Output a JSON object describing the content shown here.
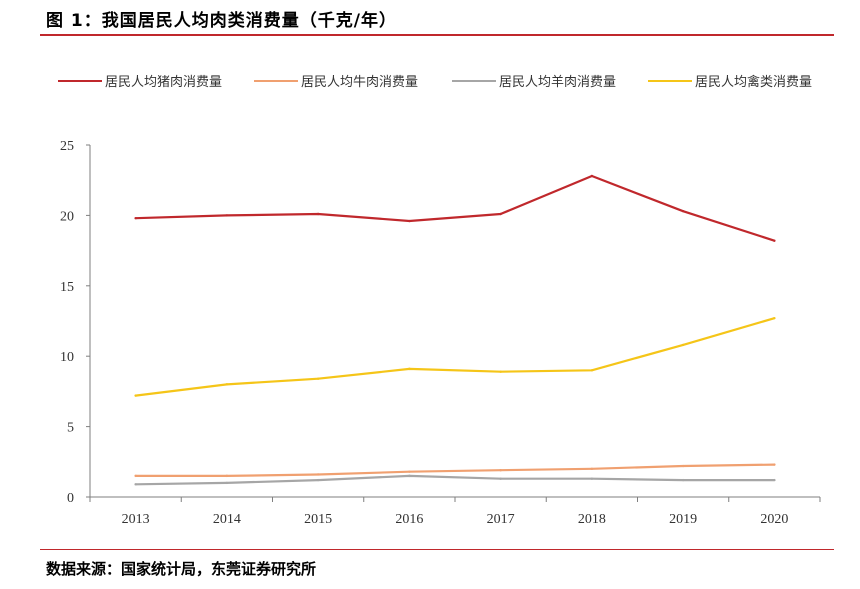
{
  "figure": {
    "title": "图 1：我国居民人均肉类消费量（千克/年）",
    "source": "数据来源：国家统计局，东莞证券研究所"
  },
  "chart_data": {
    "type": "line",
    "title": "",
    "xlabel": "",
    "ylabel": "",
    "categories": [
      "2013",
      "2014",
      "2015",
      "2016",
      "2017",
      "2018",
      "2019",
      "2020"
    ],
    "ylim": [
      0,
      25
    ],
    "yticks": [
      0,
      5,
      10,
      15,
      20,
      25
    ],
    "grid": false,
    "legend": "top",
    "series": [
      {
        "name": "居民人均猪肉消费量",
        "color": "#c0282c",
        "values": [
          19.8,
          20.0,
          20.1,
          19.6,
          20.1,
          22.8,
          20.3,
          18.2
        ]
      },
      {
        "name": "居民人均牛肉消费量",
        "color": "#f0a070",
        "values": [
          1.5,
          1.5,
          1.6,
          1.8,
          1.9,
          2.0,
          2.2,
          2.3
        ]
      },
      {
        "name": "居民人均羊肉消费量",
        "color": "#a6a6a6",
        "values": [
          0.9,
          1.0,
          1.2,
          1.5,
          1.3,
          1.3,
          1.2,
          1.2
        ]
      },
      {
        "name": "居民人均禽类消费量",
        "color": "#f5c518",
        "values": [
          7.2,
          8.0,
          8.4,
          9.1,
          8.9,
          9.0,
          10.8,
          12.7
        ]
      }
    ]
  }
}
